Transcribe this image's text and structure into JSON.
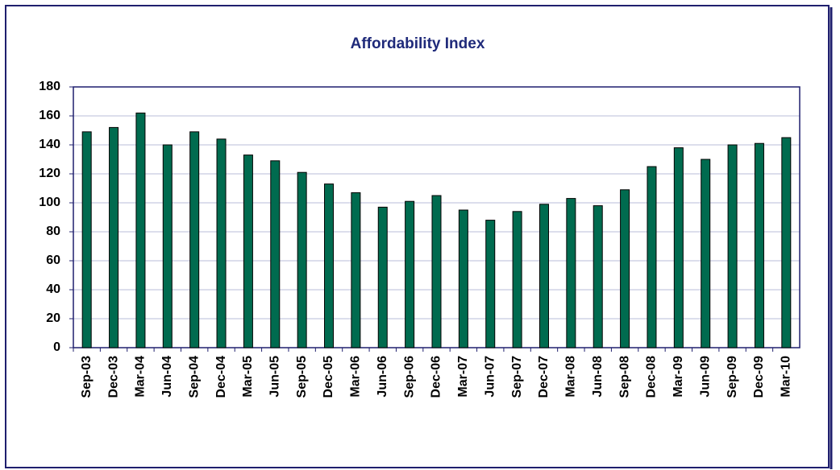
{
  "chart_data": {
    "type": "bar",
    "title": "Affordability Index",
    "categories": [
      "Sep-03",
      "Dec-03",
      "Mar-04",
      "Jun-04",
      "Sep-04",
      "Dec-04",
      "Mar-05",
      "Jun-05",
      "Sep-05",
      "Dec-05",
      "Mar-06",
      "Jun-06",
      "Sep-06",
      "Dec-06",
      "Mar-07",
      "Jun-07",
      "Sep-07",
      "Dec-07",
      "Mar-08",
      "Jun-08",
      "Sep-08",
      "Dec-08",
      "Mar-09",
      "Jun-09",
      "Sep-09",
      "Dec-09",
      "Mar-10"
    ],
    "values": [
      149,
      152,
      162,
      140,
      149,
      144,
      133,
      129,
      121,
      113,
      107,
      97,
      101,
      105,
      95,
      88,
      94,
      99,
      103,
      98,
      109,
      125,
      138,
      130,
      140,
      141,
      145
    ],
    "color": "#006b4f",
    "ylim": [
      0,
      180
    ],
    "yticks": [
      0,
      20,
      40,
      60,
      80,
      100,
      120,
      140,
      160,
      180
    ],
    "grid": true
  }
}
